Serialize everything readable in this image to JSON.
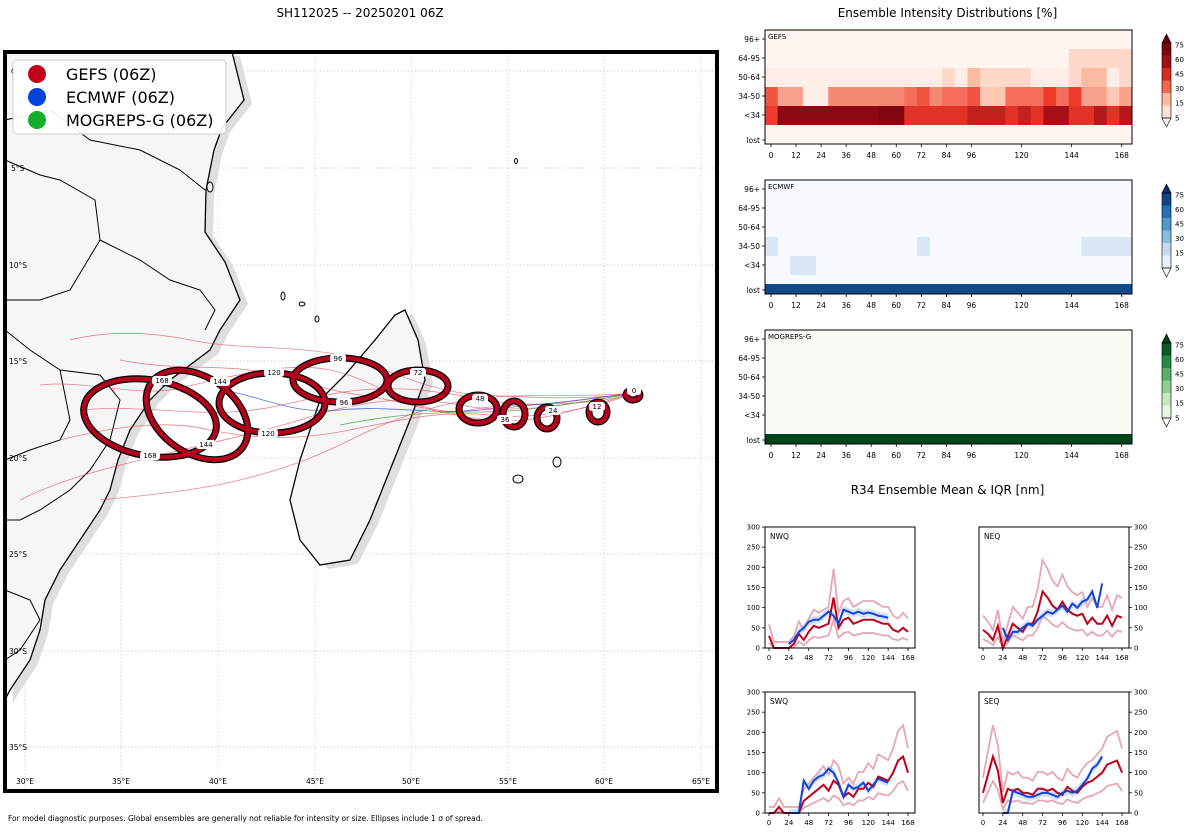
{
  "title": "SH112025 -- 20250201 06Z",
  "footnote": "For model diagnostic purposes. Global ensembles are generally not reliable for intensity or size. Ellipses include 1 σ of spread.",
  "legend": [
    {
      "label": "GEFS (06Z)",
      "color": "#c0001a"
    },
    {
      "label": "ECMWF (06Z)",
      "color": "#0044dd"
    },
    {
      "label": "MOGREPS-G (06Z)",
      "color": "#12b028"
    }
  ],
  "map": {
    "lat_labels": [
      "0°",
      "5°S",
      "10°S",
      "15°S",
      "20°S",
      "25°S",
      "30°S",
      "35°S"
    ],
    "lon_labels": [
      "30°E",
      "35°E",
      "40°E",
      "45°E",
      "50°E",
      "55°E",
      "60°E",
      "65°E"
    ],
    "ellipse_labels": [
      "0",
      "12",
      "24",
      "36",
      "48",
      "72",
      "96",
      "96",
      "120",
      "120",
      "144",
      "168",
      "168",
      "144"
    ]
  },
  "chart_data": [
    {
      "type": "heatmap",
      "name": "GEFS",
      "title": "Ensemble Intensity Distributions [%]",
      "y_categories": [
        "96+",
        "64-95",
        "50-64",
        "34-50",
        "<34",
        "lost"
      ],
      "x_ticks": [
        "0",
        "12",
        "24",
        "36",
        "48",
        "60",
        "72",
        "84",
        "96",
        "120",
        "144",
        "168"
      ],
      "colorbar_ticks": [
        "75",
        "60",
        "45",
        "30",
        "15",
        "5"
      ],
      "rows": [
        [
          0,
          0,
          0,
          0,
          0,
          0,
          0,
          0,
          0,
          0,
          0,
          0,
          0,
          0,
          0,
          0,
          0,
          0,
          0,
          0,
          0,
          0,
          0,
          0,
          0,
          0,
          0,
          0,
          0
        ],
        [
          0,
          0,
          0,
          0,
          0,
          0,
          0,
          0,
          0,
          0,
          0,
          0,
          0,
          0,
          0,
          0,
          0,
          0,
          0,
          0,
          0,
          0,
          0,
          0,
          12,
          12,
          12,
          12,
          12
        ],
        [
          3,
          3,
          3,
          3,
          3,
          3,
          3,
          3,
          3,
          3,
          3,
          3,
          3,
          3,
          12,
          3,
          25,
          12,
          12,
          12,
          12,
          3,
          3,
          3,
          12,
          25,
          25,
          3,
          12
        ],
        [
          45,
          30,
          30,
          3,
          3,
          35,
          35,
          35,
          35,
          35,
          35,
          40,
          45,
          35,
          40,
          40,
          45,
          20,
          20,
          40,
          40,
          40,
          50,
          40,
          50,
          30,
          30,
          20,
          30
        ],
        [
          50,
          85,
          85,
          85,
          85,
          85,
          85,
          85,
          85,
          90,
          90,
          55,
          55,
          55,
          55,
          55,
          65,
          65,
          65,
          55,
          65,
          55,
          75,
          75,
          55,
          55,
          70,
          55,
          70
        ],
        [
          0,
          0,
          0,
          0,
          0,
          0,
          0,
          0,
          0,
          0,
          0,
          0,
          0,
          0,
          0,
          0,
          0,
          0,
          0,
          0,
          0,
          0,
          0,
          0,
          0,
          0,
          0,
          0,
          0
        ]
      ]
    },
    {
      "type": "heatmap",
      "name": "ECMWF",
      "y_categories": [
        "96+",
        "64-95",
        "50-64",
        "34-50",
        "<34",
        "lost"
      ],
      "x_ticks": [
        "0",
        "12",
        "24",
        "36",
        "48",
        "60",
        "72",
        "84",
        "96",
        "120",
        "144",
        "168"
      ],
      "colorbar_ticks": [
        "75",
        "60",
        "45",
        "30",
        "15",
        "5"
      ],
      "rows": [
        [
          0,
          0,
          0,
          0,
          0,
          0,
          0,
          0,
          0,
          0,
          0,
          0,
          0,
          0,
          0,
          0,
          0,
          0,
          0,
          0,
          0,
          0,
          0,
          0,
          0,
          0,
          0,
          0,
          0
        ],
        [
          0,
          0,
          0,
          0,
          0,
          0,
          0,
          0,
          0,
          0,
          0,
          0,
          0,
          0,
          0,
          0,
          0,
          0,
          0,
          0,
          0,
          0,
          0,
          0,
          0,
          0,
          0,
          0,
          0
        ],
        [
          0,
          0,
          0,
          0,
          0,
          0,
          0,
          0,
          0,
          0,
          0,
          0,
          0,
          0,
          0,
          0,
          0,
          0,
          0,
          0,
          0,
          0,
          0,
          0,
          0,
          0,
          0,
          0,
          0
        ],
        [
          15,
          0,
          0,
          0,
          0,
          0,
          0,
          0,
          0,
          0,
          0,
          0,
          15,
          0,
          0,
          0,
          0,
          0,
          0,
          0,
          0,
          0,
          0,
          0,
          0,
          15,
          15,
          15,
          15
        ],
        [
          0,
          0,
          15,
          15,
          0,
          0,
          0,
          0,
          0,
          0,
          0,
          0,
          0,
          0,
          0,
          0,
          0,
          0,
          0,
          0,
          0,
          0,
          0,
          0,
          0,
          0,
          0,
          0,
          0
        ],
        [
          90,
          90,
          90,
          90,
          90,
          90,
          90,
          90,
          90,
          90,
          90,
          90,
          90,
          90,
          90,
          90,
          90,
          90,
          90,
          90,
          90,
          90,
          90,
          90,
          90,
          90,
          90,
          90,
          90
        ]
      ]
    },
    {
      "type": "heatmap",
      "name": "MOGREPS-G",
      "y_categories": [
        "96+",
        "64-95",
        "50-64",
        "34-50",
        "<34",
        "lost"
      ],
      "x_ticks": [
        "0",
        "12",
        "24",
        "36",
        "48",
        "60",
        "72",
        "84",
        "96",
        "120",
        "144",
        "168"
      ],
      "colorbar_ticks": [
        "75",
        "60",
        "45",
        "30",
        "15",
        "5"
      ],
      "rows": [
        [
          0,
          0,
          0,
          0,
          0,
          0,
          0,
          0,
          0,
          0,
          0,
          0,
          0,
          0,
          0,
          0,
          0,
          0,
          0,
          0,
          0,
          0,
          0,
          0,
          0,
          0,
          0,
          0,
          0
        ],
        [
          0,
          0,
          0,
          0,
          0,
          0,
          0,
          0,
          0,
          0,
          0,
          0,
          0,
          0,
          0,
          0,
          0,
          0,
          0,
          0,
          0,
          0,
          0,
          0,
          0,
          0,
          0,
          0,
          0
        ],
        [
          0,
          0,
          0,
          0,
          0,
          0,
          0,
          0,
          0,
          0,
          0,
          0,
          0,
          0,
          0,
          0,
          0,
          0,
          0,
          0,
          0,
          0,
          0,
          0,
          0,
          0,
          0,
          0,
          0
        ],
        [
          0,
          0,
          0,
          0,
          0,
          0,
          0,
          0,
          0,
          0,
          0,
          0,
          0,
          0,
          0,
          0,
          0,
          0,
          0,
          0,
          0,
          0,
          0,
          0,
          0,
          0,
          0,
          0,
          0
        ],
        [
          0,
          0,
          0,
          0,
          0,
          0,
          0,
          0,
          0,
          0,
          0,
          0,
          0,
          0,
          0,
          0,
          0,
          0,
          0,
          0,
          0,
          0,
          0,
          0,
          0,
          0,
          0,
          0,
          0
        ],
        [
          100,
          100,
          100,
          100,
          100,
          100,
          100,
          100,
          100,
          100,
          100,
          100,
          100,
          100,
          100,
          100,
          100,
          100,
          100,
          100,
          100,
          100,
          100,
          100,
          100,
          100,
          100,
          100,
          100
        ]
      ]
    },
    {
      "type": "line",
      "name": "NWQ",
      "title": "R34 Ensemble Mean & IQR [nm]",
      "ylim": [
        0,
        300
      ],
      "yticks": [
        "0",
        "50",
        "100",
        "150",
        "200",
        "250",
        "300"
      ],
      "xticks": [
        "0",
        "24",
        "48",
        "72",
        "96",
        "120",
        "144",
        "168"
      ],
      "series": [
        {
          "name": "GEFS mean",
          "x": [
            0,
            6,
            12,
            18,
            24,
            30,
            36,
            42,
            48,
            54,
            60,
            66,
            72,
            78,
            84,
            90,
            96,
            102,
            108,
            114,
            120,
            126,
            132,
            138,
            144,
            150,
            156,
            162,
            168
          ],
          "values": [
            30,
            0,
            0,
            0,
            0,
            10,
            35,
            20,
            40,
            55,
            50,
            55,
            60,
            125,
            50,
            70,
            75,
            60,
            65,
            70,
            70,
            70,
            65,
            60,
            60,
            45,
            40,
            50,
            40
          ]
        },
        {
          "name": "ECMWF mean",
          "x": [
            24,
            30,
            36,
            42,
            48,
            54,
            60,
            66,
            72,
            78,
            84,
            90,
            96,
            102,
            108,
            114,
            120,
            126,
            132,
            138,
            144
          ],
          "values": [
            10,
            20,
            40,
            50,
            65,
            70,
            70,
            80,
            90,
            80,
            60,
            95,
            90,
            85,
            90,
            85,
            88,
            85,
            80,
            78,
            75
          ]
        }
      ]
    },
    {
      "type": "line",
      "name": "NEQ",
      "ylim": [
        0,
        300
      ],
      "yticks": [
        "0",
        "50",
        "100",
        "150",
        "200",
        "250",
        "300"
      ],
      "xticks": [
        "0",
        "24",
        "48",
        "72",
        "96",
        "120",
        "144",
        "168"
      ],
      "series": [
        {
          "name": "GEFS mean",
          "x": [
            0,
            6,
            12,
            18,
            24,
            30,
            36,
            42,
            48,
            54,
            60,
            66,
            72,
            78,
            84,
            90,
            96,
            102,
            108,
            114,
            120,
            126,
            132,
            138,
            144,
            150,
            156,
            162,
            168
          ],
          "values": [
            45,
            35,
            20,
            55,
            0,
            30,
            60,
            50,
            40,
            60,
            60,
            90,
            140,
            125,
            105,
            95,
            115,
            95,
            85,
            80,
            85,
            60,
            75,
            60,
            60,
            80,
            55,
            80,
            75
          ]
        },
        {
          "name": "ECMWF mean",
          "x": [
            24,
            30,
            36,
            42,
            48,
            54,
            60,
            66,
            72,
            78,
            84,
            90,
            96,
            102,
            108,
            114,
            120,
            126,
            132,
            138,
            144
          ],
          "values": [
            50,
            20,
            40,
            40,
            50,
            60,
            55,
            70,
            80,
            90,
            85,
            95,
            105,
            90,
            110,
            100,
            115,
            120,
            140,
            100,
            160
          ]
        }
      ]
    },
    {
      "type": "line",
      "name": "SWQ",
      "ylim": [
        0,
        300
      ],
      "yticks": [
        "0",
        "50",
        "100",
        "150",
        "200",
        "250",
        "300"
      ],
      "xticks": [
        "0",
        "24",
        "48",
        "72",
        "96",
        "120",
        "144",
        "168"
      ],
      "series": [
        {
          "name": "GEFS mean",
          "x": [
            0,
            6,
            12,
            18,
            24,
            30,
            36,
            42,
            48,
            54,
            60,
            66,
            72,
            78,
            84,
            90,
            96,
            102,
            108,
            114,
            120,
            126,
            132,
            138,
            144,
            150,
            156,
            162,
            168
          ],
          "values": [
            0,
            0,
            15,
            0,
            0,
            0,
            0,
            30,
            40,
            50,
            60,
            70,
            55,
            80,
            70,
            40,
            50,
            40,
            60,
            60,
            75,
            65,
            90,
            85,
            80,
            100,
            130,
            140,
            100
          ]
        },
        {
          "name": "ECMWF mean",
          "x": [
            24,
            30,
            36,
            42,
            48,
            54,
            60,
            66,
            72,
            78,
            84,
            90,
            96,
            102,
            108,
            114,
            120,
            126,
            132,
            138,
            144
          ],
          "values": [
            0,
            0,
            0,
            80,
            60,
            80,
            90,
            95,
            110,
            100,
            75,
            40,
            70,
            60,
            65,
            75,
            55,
            70,
            85,
            80,
            75
          ]
        }
      ]
    },
    {
      "type": "line",
      "name": "SEQ",
      "ylim": [
        0,
        300
      ],
      "yticks": [
        "0",
        "50",
        "100",
        "150",
        "200",
        "250",
        "300"
      ],
      "xticks": [
        "0",
        "24",
        "48",
        "72",
        "96",
        "120",
        "144",
        "168"
      ],
      "series": [
        {
          "name": "GEFS mean",
          "x": [
            0,
            6,
            12,
            18,
            24,
            30,
            36,
            42,
            48,
            54,
            60,
            66,
            72,
            78,
            84,
            90,
            96,
            102,
            108,
            114,
            120,
            126,
            132,
            138,
            144,
            150,
            156,
            162,
            168
          ],
          "values": [
            50,
            95,
            140,
            105,
            25,
            60,
            55,
            60,
            50,
            50,
            45,
            60,
            60,
            55,
            60,
            50,
            45,
            65,
            55,
            50,
            65,
            75,
            80,
            90,
            100,
            120,
            125,
            130,
            100
          ]
        },
        {
          "name": "ECMWF mean",
          "x": [
            24,
            30,
            36,
            42,
            48,
            54,
            60,
            66,
            72,
            78,
            84,
            90,
            96,
            102,
            108,
            114,
            120,
            126,
            132,
            138,
            144
          ],
          "values": [
            0,
            0,
            55,
            50,
            45,
            40,
            40,
            45,
            50,
            50,
            45,
            40,
            50,
            55,
            50,
            55,
            70,
            85,
            110,
            120,
            140
          ]
        }
      ]
    }
  ]
}
